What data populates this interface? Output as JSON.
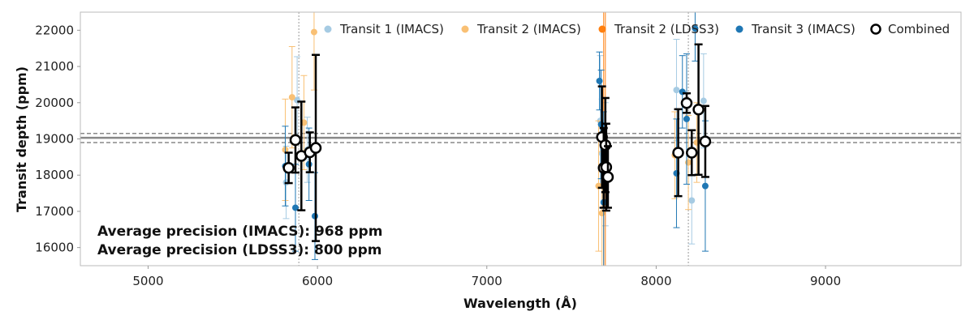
{
  "chart_data": {
    "type": "scatter",
    "xlabel": "Wavelength (Å)",
    "ylabel": "Transit depth (ppm)",
    "xlim": [
      4600,
      9800
    ],
    "ylim": [
      15500,
      22500
    ],
    "xticks": [
      5000,
      6000,
      7000,
      8000,
      9000
    ],
    "yticks": [
      16000,
      17000,
      18000,
      19000,
      20000,
      21000,
      22000
    ],
    "grid": false,
    "legend_position": "top-right",
    "colors": {
      "transit1": "#a6cbe3",
      "transit2_imacs": "#f9c074",
      "transit2_ldss3": "#ff7f0e",
      "transit3": "#1f77b4",
      "combined": "#000000"
    },
    "legend": [
      "Transit 1 (IMACS)",
      "Transit 2 (IMACS)",
      "Transit 2 (LDSS3)",
      "Transit 3 (IMACS)",
      "Combined"
    ],
    "reference_lines": {
      "vertical": [
        5890,
        8190
      ],
      "horizontal_solid": 19030,
      "horizontal_dashed": [
        18900,
        19150
      ]
    },
    "annotations": [
      "Average precision (IMACS): 968 ppm",
      "Average precision (LDSS3): 800  ppm"
    ],
    "series": [
      {
        "name": "Transit 1 (IMACS)",
        "points": [
          {
            "x": 5815,
            "y": 17800,
            "err": 1000
          },
          {
            "x": 5880,
            "y": 20070,
            "err": 1200
          },
          {
            "x": 5940,
            "y": 18700,
            "err": 900
          },
          {
            "x": 7670,
            "y": 19500,
            "err": 1800
          },
          {
            "x": 7680,
            "y": 18600,
            "err": 1500
          },
          {
            "x": 7700,
            "y": 18300,
            "err": 1700
          },
          {
            "x": 8120,
            "y": 20350,
            "err": 1400
          },
          {
            "x": 8210,
            "y": 17300,
            "err": 1200
          },
          {
            "x": 8280,
            "y": 20050,
            "err": 1300
          }
        ]
      },
      {
        "name": "Transit 2 (IMACS)",
        "points": [
          {
            "x": 5810,
            "y": 18700,
            "err": 1400
          },
          {
            "x": 5850,
            "y": 20150,
            "err": 1400
          },
          {
            "x": 5920,
            "y": 19450,
            "err": 1300
          },
          {
            "x": 5980,
            "y": 21950,
            "err": 1600
          },
          {
            "x": 7660,
            "y": 17700,
            "err": 1800
          },
          {
            "x": 7680,
            "y": 16950,
            "err": 1700
          },
          {
            "x": 8110,
            "y": 18550,
            "err": 1200
          },
          {
            "x": 8190,
            "y": 18350,
            "err": 1300
          },
          {
            "x": 8240,
            "y": 18900,
            "err": 1100
          }
        ]
      },
      {
        "name": "Transit 2 (LDSS3)",
        "points": [
          {
            "x": 7690,
            "y": 18250,
            "err": 4500
          },
          {
            "x": 7700,
            "y": 18850,
            "err": 4000
          }
        ]
      },
      {
        "name": "Transit 3 (IMACS)",
        "points": [
          {
            "x": 5810,
            "y": 18250,
            "err": 1100
          },
          {
            "x": 5870,
            "y": 17100,
            "err": 1200
          },
          {
            "x": 5950,
            "y": 18300,
            "err": 1000
          },
          {
            "x": 5985,
            "y": 16870,
            "err": 1200
          },
          {
            "x": 7665,
            "y": 20600,
            "err": 800
          },
          {
            "x": 7675,
            "y": 19400,
            "err": 1500
          },
          {
            "x": 7690,
            "y": 17250,
            "err": 2500
          },
          {
            "x": 8120,
            "y": 18050,
            "err": 1500
          },
          {
            "x": 8155,
            "y": 20300,
            "err": 1000
          },
          {
            "x": 8180,
            "y": 19550,
            "err": 1800
          },
          {
            "x": 8230,
            "y": 22050,
            "err": 900
          },
          {
            "x": 8290,
            "y": 17700,
            "err": 1800
          }
        ]
      },
      {
        "name": "Combined",
        "points": [
          {
            "x": 5830,
            "y": 18200,
            "err": 420
          },
          {
            "x": 5870,
            "y": 18970,
            "err": 900
          },
          {
            "x": 5905,
            "y": 18530,
            "err": 1500
          },
          {
            "x": 5955,
            "y": 18630,
            "err": 550
          },
          {
            "x": 5990,
            "y": 18750,
            "err": 2570
          },
          {
            "x": 7680,
            "y": 19050,
            "err": 1400
          },
          {
            "x": 7690,
            "y": 18200,
            "err": 1100
          },
          {
            "x": 7700,
            "y": 18830,
            "err": 1300
          },
          {
            "x": 7705,
            "y": 18220,
            "err": 1200
          },
          {
            "x": 7715,
            "y": 17950,
            "err": 850
          },
          {
            "x": 8130,
            "y": 18620,
            "err": 1200
          },
          {
            "x": 8180,
            "y": 19990,
            "err": 270
          },
          {
            "x": 8210,
            "y": 18620,
            "err": 620
          },
          {
            "x": 8250,
            "y": 19810,
            "err": 1800
          },
          {
            "x": 8290,
            "y": 18930,
            "err": 980
          }
        ]
      }
    ]
  }
}
